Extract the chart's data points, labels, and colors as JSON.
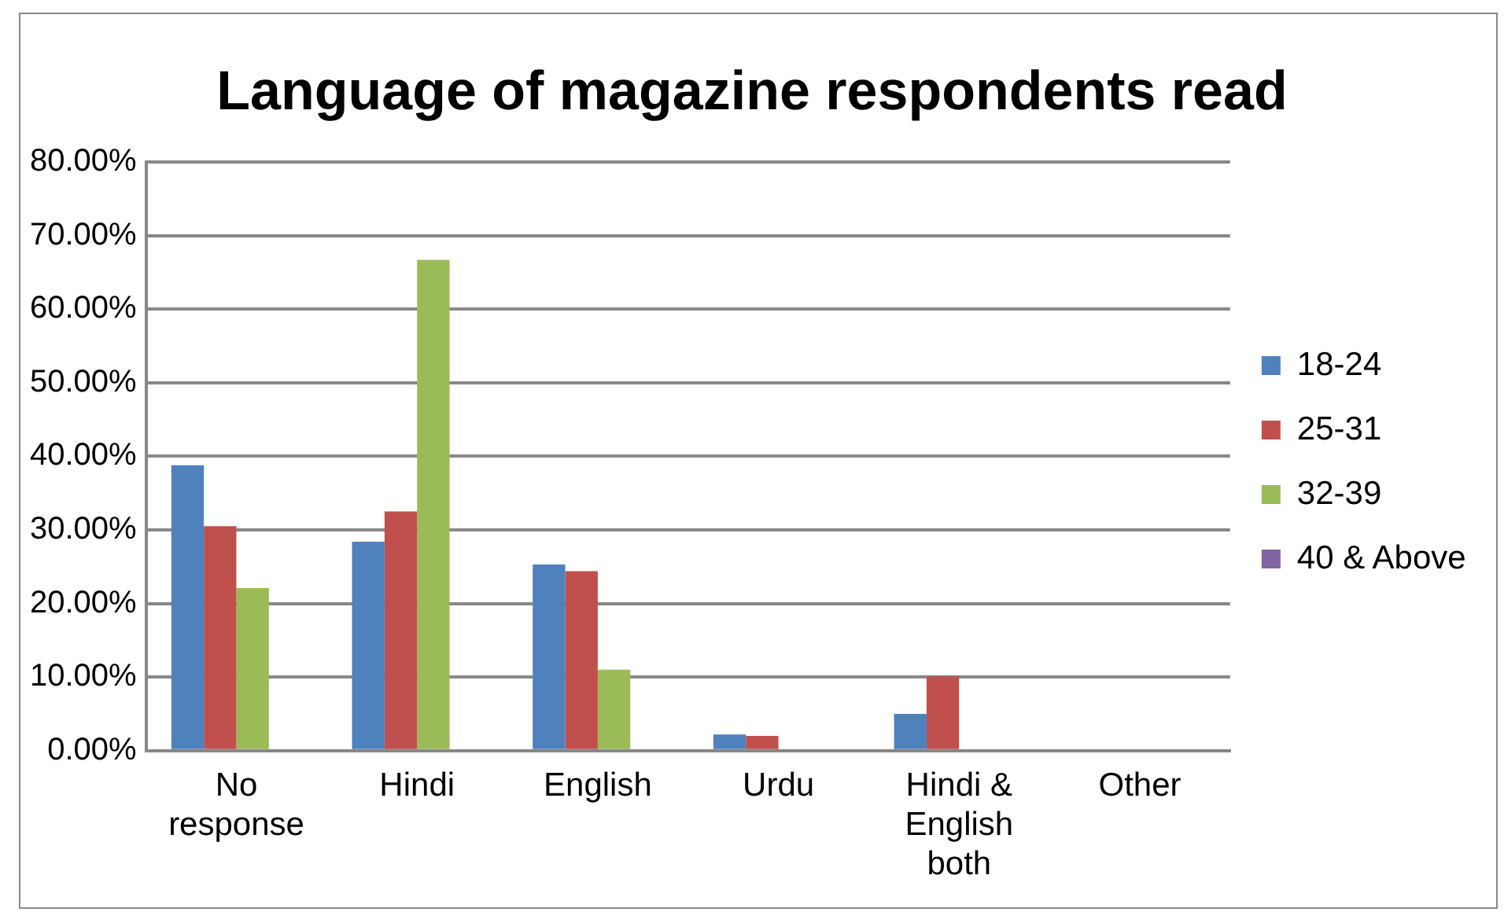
{
  "chart_data": {
    "type": "bar",
    "title": "Language of magazine respondents read",
    "categories": [
      "No response",
      "Hindi",
      "English",
      "Urdu",
      "Hindi & English both",
      "Other"
    ],
    "series": [
      {
        "name": "18-24",
        "color": "#4f81bd",
        "values": [
          38.8,
          28.4,
          25.3,
          2.2,
          5.0,
          0
        ]
      },
      {
        "name": "25-31",
        "color": "#c0504d",
        "values": [
          30.5,
          32.5,
          24.4,
          2.0,
          10.1,
          0
        ]
      },
      {
        "name": "32-39",
        "color": "#9bbb59",
        "values": [
          22.1,
          66.7,
          11.0,
          0,
          0,
          0
        ]
      },
      {
        "name": "40 & Above",
        "color": "#8064a2",
        "values": [
          0,
          0,
          0,
          0,
          0,
          0
        ]
      }
    ],
    "ylim": [
      0,
      80
    ],
    "yticks": [
      {
        "value": 0,
        "label": "0.00%"
      },
      {
        "value": 10,
        "label": "10.00%"
      },
      {
        "value": 20,
        "label": "20.00%"
      },
      {
        "value": 30,
        "label": "30.00%"
      },
      {
        "value": 40,
        "label": "40.00%"
      },
      {
        "value": 50,
        "label": "50.00%"
      },
      {
        "value": 60,
        "label": "60.00%"
      },
      {
        "value": 70,
        "label": "70.00%"
      },
      {
        "value": 80,
        "label": "80.00%"
      }
    ],
    "grid": "y",
    "legend": "right"
  }
}
